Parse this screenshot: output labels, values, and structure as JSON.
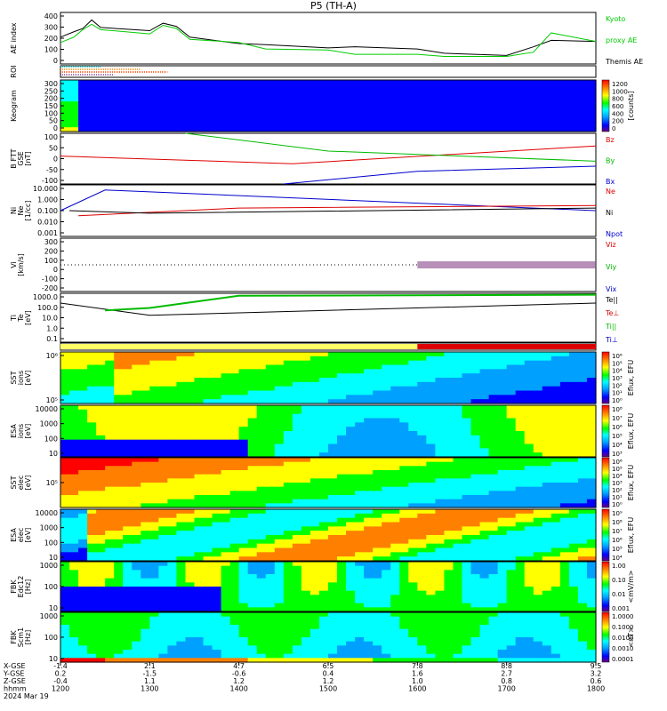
{
  "title": "P5 (TH-A)",
  "x_range": [
    1200,
    1800
  ],
  "x_ticks": [
    1200,
    1300,
    1400,
    1500,
    1600,
    1700,
    1800
  ],
  "panels": [
    {
      "id": "ae",
      "ylabel": [
        "AE index"
      ],
      "yticks": [
        "400",
        "300",
        "200",
        "100",
        "0"
      ],
      "ylim": [
        -50,
        430
      ],
      "legend": [
        {
          "label": "Kyoto",
          "color": "#00cc00"
        },
        {
          "label": "proxy AE",
          "color": "#00cc00"
        },
        {
          "label": "Themis AE",
          "color": "#000000"
        }
      ]
    },
    {
      "id": "roi",
      "ylabel": [
        "ROI"
      ]
    },
    {
      "id": "keogram",
      "ylabel": [
        "Keogram"
      ],
      "yticks": [
        "300",
        "250",
        "200",
        "150",
        "100",
        "50",
        "0"
      ],
      "colorbar": {
        "ticks": [
          "1200",
          "1000",
          "800",
          "600",
          "400",
          "200",
          "0"
        ],
        "label": "[counts]"
      }
    },
    {
      "id": "bfield",
      "ylabel": [
        "B FTT",
        "GSE",
        "[nT]"
      ],
      "yticks": [
        "100",
        "50",
        "0",
        "-50",
        "-100"
      ],
      "ylim": [
        -100,
        100
      ],
      "legend": [
        {
          "label": "Bz",
          "color": "#dd0000"
        },
        {
          "label": "By",
          "color": "#00bb00"
        },
        {
          "label": "Bx",
          "color": "#0000cc"
        }
      ]
    },
    {
      "id": "density",
      "ylabel": [
        "Ni",
        "Ne",
        "[1/cc]"
      ],
      "yticks": [
        "10.000",
        "1.000",
        "0.100",
        "0.010",
        "0.001"
      ],
      "legend": [
        {
          "label": "Ne",
          "color": "#dd0000"
        },
        {
          "label": "Ni",
          "color": "#000000"
        },
        {
          "label": "Npot",
          "color": "#0000cc"
        }
      ]
    },
    {
      "id": "velocity",
      "ylabel": [
        "Vi",
        "[km/s]"
      ],
      "yticks": [
        "300",
        "200",
        "100",
        "0",
        "-100",
        "-200"
      ],
      "ylim": [
        -300,
        300
      ],
      "legend": [
        {
          "label": "Viz",
          "color": "#dd0000"
        },
        {
          "label": "Viy",
          "color": "#00bb00"
        },
        {
          "label": "Vix",
          "color": "#0000cc"
        }
      ]
    },
    {
      "id": "temperature",
      "ylabel": [
        "Ti",
        "Te",
        "[eV]"
      ],
      "yticks": [
        "1000.0",
        "100.0",
        "10.0",
        "1.0",
        "0.1"
      ],
      "legend": [
        {
          "label": "Te||",
          "color": "#000000"
        },
        {
          "label": "Te⊥",
          "color": "#dd0000"
        },
        {
          "label": "Ti||",
          "color": "#00bb00"
        },
        {
          "label": "Ti⊥",
          "color": "#0000cc"
        }
      ]
    },
    {
      "id": "flag"
    },
    {
      "id": "sst_ion",
      "ylabel": [
        "SST",
        "ions",
        "[eV]"
      ],
      "yticks": [
        "10⁶",
        "10⁵"
      ],
      "colorbar": {
        "ticks": [
          "10⁶",
          "10⁵",
          "10⁴",
          "10³",
          "10²",
          "10¹",
          "10⁰"
        ],
        "label": "Eflux, EFU"
      }
    },
    {
      "id": "esa_ion",
      "ylabel": [
        "ESA",
        "ions",
        "[eV]"
      ],
      "yticks": [
        "10000",
        "1000",
        "100",
        "10"
      ],
      "colorbar": {
        "ticks": [
          "10⁸",
          "10⁷",
          "10⁶",
          "10⁵",
          "10⁴",
          "10³"
        ],
        "label": "Eflux, EFU"
      }
    },
    {
      "id": "sst_elec",
      "ylabel": [
        "SST",
        "elec",
        "[eV]"
      ],
      "yticks": [
        "10⁵"
      ],
      "colorbar": {
        "ticks": [
          "10⁶",
          "10⁵",
          "10⁴",
          "10³",
          "10²",
          "10¹",
          "10⁰"
        ],
        "label": "Eflux, EFU"
      }
    },
    {
      "id": "esa_elec",
      "ylabel": [
        "ESA",
        "elec",
        "[eV]"
      ],
      "yticks": [
        "10000",
        "1000",
        "100",
        "10"
      ],
      "colorbar": {
        "ticks": [
          "10⁹",
          "10⁸",
          "10⁷",
          "10⁶",
          "10⁵",
          "10⁴"
        ],
        "label": "Eflux, EFU"
      }
    },
    {
      "id": "fbk_e",
      "ylabel": [
        "FBK",
        "Edc12",
        "[Hz]"
      ],
      "yticks": [
        "1000",
        "100",
        "10"
      ],
      "colorbar": {
        "ticks": [
          "1.00",
          "0.10",
          "0.01",
          "0.001"
        ],
        "label": "<mV/m>"
      }
    },
    {
      "id": "fbk_b",
      "ylabel": [
        "FBK",
        "Scm1",
        "[Hz]"
      ],
      "yticks": [
        "1000",
        "100",
        "10"
      ],
      "colorbar": {
        "ticks": [
          "1.0000",
          "0.1000",
          "0.0100",
          "0.0010",
          "0.0001"
        ],
        "label": "<nT>"
      }
    }
  ],
  "footer": {
    "row_labels": [
      "X-GSE",
      "Y-GSE",
      "Z-GSE",
      "hhmm",
      "2024 Mar 19"
    ],
    "columns": [
      {
        "x": 1200,
        "vals": [
          "-1.4",
          "0.2",
          "-0.4",
          "1200"
        ]
      },
      {
        "x": 1300,
        "vals": [
          "2.1",
          "-1.5",
          "1.1",
          "1300"
        ]
      },
      {
        "x": 1400,
        "vals": [
          "4.7",
          "-0.6",
          "1.2",
          "1400"
        ]
      },
      {
        "x": 1500,
        "vals": [
          "6.5",
          "0.4",
          "1.2",
          "1500"
        ]
      },
      {
        "x": 1600,
        "vals": [
          "7.8",
          "1.6",
          "1.0",
          "1600"
        ]
      },
      {
        "x": 1700,
        "vals": [
          "8.8",
          "2.7",
          "0.8",
          "1700"
        ]
      },
      {
        "x": 1800,
        "vals": [
          "9.5",
          "3.2",
          "0.6",
          "1800"
        ]
      }
    ]
  },
  "chart_data": {
    "type": "line",
    "title": "P5 (TH-A)",
    "x_label": "hhmm",
    "date": "2024 Mar 19",
    "x": [
      1200,
      1215,
      1225,
      1235,
      1245,
      1300,
      1315,
      1330,
      1345,
      1400,
      1430,
      1500,
      1530,
      1600,
      1630,
      1700,
      1730,
      1750,
      1800
    ],
    "series": [
      {
        "name": "Themis AE",
        "color": "#000000",
        "values": [
          200,
          250,
          280,
          360,
          290,
          260,
          330,
          300,
          200,
          140,
          130,
          100,
          110,
          90,
          50,
          30,
          110,
          170,
          160
        ]
      },
      {
        "name": "Kyoto proxy AE",
        "color": "#00cc00",
        "values": [
          150,
          200,
          270,
          320,
          270,
          230,
          310,
          280,
          180,
          150,
          90,
          80,
          40,
          40,
          20,
          20,
          60,
          240,
          160
        ]
      }
    ],
    "ylim": [
      -50,
      430
    ],
    "ylabel": "AE index"
  }
}
